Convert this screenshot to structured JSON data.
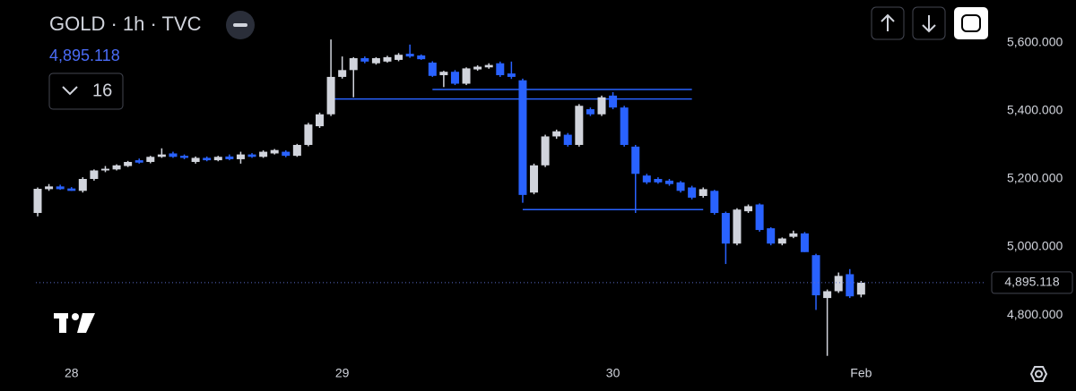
{
  "chart_data": {
    "type": "candlestick",
    "title": "GOLD · 1h · TVC",
    "last_price": {
      "value": 4895.118,
      "label": "4,895.118"
    },
    "indicator_count": "16",
    "up_color": "#d1d4dc",
    "down_color": "#2962ff",
    "categories": [
      null,
      null,
      null,
      "28",
      null,
      null,
      null,
      null,
      null,
      null,
      null,
      null,
      null,
      null,
      null,
      null,
      null,
      null,
      null,
      null,
      null,
      null,
      null,
      null,
      null,
      null,
      null,
      "29",
      null,
      null,
      null,
      null,
      null,
      null,
      null,
      null,
      null,
      null,
      null,
      null,
      null,
      null,
      null,
      null,
      null,
      null,
      null,
      null,
      null,
      null,
      null,
      "30",
      null,
      null,
      null,
      null,
      null,
      null,
      null,
      null,
      null,
      null,
      null,
      null,
      null,
      null,
      null,
      null,
      null,
      null,
      null,
      null,
      null,
      "Feb"
    ],
    "open": [
      5100,
      5170,
      5178,
      5172,
      5165,
      5200,
      5225,
      5228,
      5238,
      5255,
      5250,
      5265,
      5275,
      5268,
      5250,
      5262,
      5255,
      5266,
      5258,
      5272,
      5265,
      5275,
      5280,
      5268,
      5300,
      5355,
      5390,
      5500,
      5520,
      5555,
      5540,
      5545,
      5550,
      5568,
      5563,
      5542,
      5505,
      5515,
      5480,
      5522,
      5528,
      5540,
      5510,
      5490,
      5160,
      5240,
      5325,
      5330,
      5300,
      5405,
      5390,
      5445,
      5410,
      5295,
      5210,
      5200,
      5195,
      5190,
      5175,
      5150,
      5165,
      5100,
      5010,
      5105,
      5125,
      5055,
      5010,
      5030,
      5040,
      4976,
      4850,
      4870,
      4920,
      4860
    ],
    "high": [
      5175,
      5185,
      5183,
      5176,
      5205,
      5228,
      5238,
      5243,
      5253,
      5260,
      5268,
      5290,
      5280,
      5272,
      5266,
      5266,
      5268,
      5272,
      5280,
      5276,
      5284,
      5288,
      5284,
      5303,
      5365,
      5395,
      5610,
      5560,
      5558,
      5560,
      5558,
      5562,
      5570,
      5595,
      5566,
      5546,
      5518,
      5520,
      5528,
      5534,
      5540,
      5545,
      5545,
      5495,
      5245,
      5330,
      5345,
      5335,
      5420,
      5410,
      5445,
      5455,
      5415,
      5300,
      5215,
      5205,
      5200,
      5194,
      5180,
      5175,
      5168,
      5104,
      5114,
      5125,
      5128,
      5058,
      5028,
      5048,
      5044,
      4980,
      4875,
      4925,
      4935,
      4900
    ],
    "low": [
      5090,
      5165,
      5168,
      5165,
      5160,
      5195,
      5220,
      5225,
      5235,
      5245,
      5246,
      5262,
      5262,
      5258,
      5245,
      5252,
      5252,
      5255,
      5245,
      5262,
      5262,
      5272,
      5264,
      5265,
      5296,
      5350,
      5385,
      5495,
      5440,
      5540,
      5536,
      5542,
      5546,
      5556,
      5550,
      5500,
      5470,
      5476,
      5476,
      5518,
      5524,
      5500,
      5494,
      5130,
      5155,
      5235,
      5318,
      5295,
      5295,
      5385,
      5385,
      5405,
      5295,
      5100,
      5185,
      5186,
      5180,
      5160,
      5140,
      5145,
      5095,
      4950,
      5005,
      5100,
      5045,
      5005,
      5005,
      5026,
      4985,
      4815,
      4680,
      4865,
      4850,
      4852
    ],
    "close": [
      5171,
      5178,
      5170,
      5165,
      5200,
      5225,
      5230,
      5240,
      5250,
      5248,
      5265,
      5272,
      5265,
      5262,
      5262,
      5255,
      5265,
      5258,
      5272,
      5265,
      5280,
      5285,
      5268,
      5300,
      5360,
      5390,
      5500,
      5520,
      5555,
      5545,
      5555,
      5558,
      5565,
      5560,
      5552,
      5503,
      5515,
      5480,
      5525,
      5530,
      5535,
      5505,
      5500,
      5153,
      5240,
      5325,
      5340,
      5300,
      5415,
      5390,
      5440,
      5410,
      5300,
      5215,
      5190,
      5190,
      5185,
      5165,
      5145,
      5170,
      5100,
      5010,
      5110,
      5120,
      5050,
      5010,
      5025,
      5040,
      4985,
      4858,
      4870,
      4915,
      4855,
      4895
    ],
    "levels": [
      {
        "price": 5463,
        "from": 35,
        "to": 58
      },
      {
        "price": 5435,
        "from": 26,
        "to": 58
      },
      {
        "price": 5110,
        "from": 43,
        "to": 59
      }
    ],
    "ylim": [
      4674,
      5726
    ],
    "yticks": [
      {
        "value": 4800,
        "label": "4,800.000"
      },
      {
        "value": 5000,
        "label": "5,000.000"
      },
      {
        "value": 5200,
        "label": "5,200.000"
      },
      {
        "value": 5400,
        "label": "5,400.000"
      },
      {
        "value": 5600,
        "label": "5,600.000"
      }
    ]
  }
}
